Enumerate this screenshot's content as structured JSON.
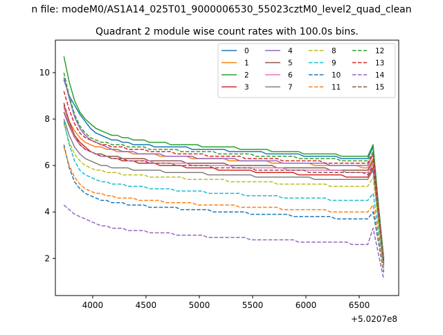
{
  "suptitle": "n file: modeM0/AS1A14_025T01_9000006530_55023cztM0_level2_quad_clean",
  "chart_data": {
    "type": "line",
    "title": "Quadrant 2 module wise count rates with 100.0s bins.",
    "xlabel": "",
    "ylabel": "",
    "x_offset_label": "+5.0207e8",
    "xlim": [
      3650,
      6870
    ],
    "ylim": [
      0.4,
      11.4
    ],
    "xticks": [
      4000,
      4500,
      5000,
      5500,
      6000,
      6500
    ],
    "yticks": [
      2,
      4,
      6,
      8,
      10
    ],
    "grid": false,
    "legend": {
      "placement": "top-right",
      "columns": 4
    },
    "x": [
      3730,
      3780,
      3830,
      3880,
      3930,
      3980,
      4030,
      4080,
      4130,
      4180,
      4230,
      4280,
      4330,
      4380,
      4430,
      4480,
      4530,
      4580,
      4630,
      4680,
      4730,
      4780,
      4830,
      4880,
      4930,
      4980,
      5030,
      5080,
      5130,
      5180,
      5230,
      5280,
      5330,
      5380,
      5430,
      5480,
      5530,
      5580,
      5630,
      5680,
      5730,
      5780,
      5830,
      5880,
      5930,
      5980,
      6030,
      6080,
      6130,
      6180,
      6230,
      6280,
      6330,
      6380,
      6430,
      6480,
      6530,
      6580,
      6630,
      6680,
      6730
    ],
    "series": [
      {
        "name": "0",
        "color": "#1f77b4",
        "dash": "solid",
        "values": [
          9.7,
          9.0,
          8.6,
          8.2,
          7.9,
          7.6,
          7.4,
          7.3,
          7.2,
          7.1,
          7.1,
          7.0,
          7.0,
          6.9,
          6.9,
          6.9,
          6.9,
          6.8,
          6.8,
          6.8,
          6.8,
          6.8,
          6.8,
          6.8,
          6.7,
          6.7,
          6.7,
          6.7,
          6.7,
          6.7,
          6.7,
          6.6,
          6.6,
          6.6,
          6.6,
          6.6,
          6.6,
          6.6,
          6.5,
          6.5,
          6.5,
          6.5,
          6.5,
          6.5,
          6.5,
          6.4,
          6.4,
          6.4,
          6.4,
          6.4,
          6.4,
          6.4,
          6.3,
          6.3,
          6.3,
          6.3,
          6.3,
          6.3,
          6.8,
          4.3,
          1.9
        ]
      },
      {
        "name": "1",
        "color": "#ff7f0e",
        "dash": "solid",
        "values": [
          8.5,
          7.9,
          7.5,
          7.2,
          7.0,
          6.9,
          6.8,
          6.8,
          6.7,
          6.7,
          6.6,
          6.6,
          6.6,
          6.5,
          6.5,
          6.5,
          6.5,
          6.5,
          6.4,
          6.4,
          6.4,
          6.4,
          6.4,
          6.4,
          6.3,
          6.3,
          6.3,
          6.3,
          6.3,
          6.3,
          6.3,
          6.2,
          6.2,
          6.2,
          6.2,
          6.2,
          6.2,
          6.2,
          6.2,
          6.1,
          6.1,
          6.1,
          6.1,
          6.1,
          6.1,
          6.1,
          6.1,
          6.0,
          6.0,
          6.0,
          6.0,
          6.0,
          6.0,
          6.0,
          6.0,
          6.0,
          5.9,
          5.9,
          6.3,
          4.0,
          1.8
        ]
      },
      {
        "name": "2",
        "color": "#2ca02c",
        "dash": "solid",
        "values": [
          10.7,
          9.6,
          8.8,
          8.3,
          8.0,
          7.8,
          7.6,
          7.5,
          7.4,
          7.3,
          7.3,
          7.2,
          7.2,
          7.1,
          7.1,
          7.1,
          7.0,
          7.0,
          7.0,
          7.0,
          6.9,
          6.9,
          6.9,
          6.9,
          6.9,
          6.9,
          6.8,
          6.8,
          6.8,
          6.8,
          6.8,
          6.8,
          6.8,
          6.7,
          6.7,
          6.7,
          6.7,
          6.7,
          6.7,
          6.6,
          6.6,
          6.6,
          6.6,
          6.6,
          6.6,
          6.5,
          6.5,
          6.5,
          6.5,
          6.5,
          6.5,
          6.5,
          6.4,
          6.4,
          6.4,
          6.4,
          6.4,
          6.4,
          6.9,
          4.3,
          2.0
        ]
      },
      {
        "name": "3",
        "color": "#d62728",
        "dash": "solid",
        "values": [
          8.6,
          7.9,
          7.3,
          7.0,
          6.8,
          6.6,
          6.5,
          6.4,
          6.4,
          6.3,
          6.3,
          6.2,
          6.2,
          6.2,
          6.1,
          6.1,
          6.1,
          6.1,
          6.0,
          6.0,
          6.0,
          6.0,
          6.0,
          5.9,
          5.9,
          5.9,
          5.9,
          5.9,
          5.9,
          5.8,
          5.8,
          5.8,
          5.8,
          5.8,
          5.8,
          5.8,
          5.7,
          5.7,
          5.7,
          5.7,
          5.7,
          5.7,
          5.7,
          5.7,
          5.6,
          5.6,
          5.6,
          5.6,
          5.6,
          5.6,
          5.6,
          5.6,
          5.6,
          5.5,
          5.5,
          5.5,
          5.5,
          5.5,
          5.9,
          3.8,
          1.8
        ]
      },
      {
        "name": "4",
        "color": "#9467bd",
        "dash": "solid",
        "values": [
          9.8,
          8.9,
          8.1,
          7.6,
          7.3,
          7.1,
          7.0,
          6.9,
          6.8,
          6.7,
          6.7,
          6.6,
          6.6,
          6.6,
          6.5,
          6.5,
          6.5,
          6.5,
          6.5,
          6.4,
          6.4,
          6.4,
          6.4,
          6.4,
          6.4,
          6.3,
          6.3,
          6.3,
          6.3,
          6.3,
          6.3,
          6.3,
          6.3,
          6.2,
          6.2,
          6.2,
          6.2,
          6.2,
          6.2,
          6.2,
          6.2,
          6.1,
          6.1,
          6.1,
          6.1,
          6.1,
          6.1,
          6.1,
          6.1,
          6.1,
          6.0,
          6.0,
          6.0,
          6.0,
          6.0,
          6.0,
          6.0,
          6.0,
          6.5,
          4.1,
          1.9
        ]
      },
      {
        "name": "5",
        "color": "#8c564b",
        "dash": "solid",
        "values": [
          8.3,
          7.7,
          7.2,
          6.9,
          6.7,
          6.6,
          6.5,
          6.5,
          6.4,
          6.4,
          6.4,
          6.3,
          6.3,
          6.3,
          6.3,
          6.3,
          6.2,
          6.2,
          6.2,
          6.2,
          6.2,
          6.2,
          6.2,
          6.1,
          6.1,
          6.1,
          6.1,
          6.1,
          6.1,
          6.1,
          6.1,
          6.0,
          6.0,
          6.0,
          6.0,
          6.0,
          6.0,
          6.0,
          6.0,
          6.0,
          5.9,
          5.9,
          5.9,
          5.9,
          5.9,
          5.9,
          5.9,
          5.9,
          5.9,
          5.9,
          5.8,
          5.8,
          5.8,
          5.8,
          5.8,
          5.8,
          5.8,
          5.8,
          6.2,
          4.0,
          1.8
        ]
      },
      {
        "name": "6",
        "color": "#e377c2",
        "dash": "solid",
        "values": [
          8.5,
          7.8,
          7.2,
          6.9,
          6.7,
          6.6,
          6.5,
          6.4,
          6.4,
          6.3,
          6.3,
          6.3,
          6.2,
          6.2,
          6.2,
          6.2,
          6.2,
          6.1,
          6.1,
          6.1,
          6.1,
          6.1,
          6.1,
          6.1,
          6.0,
          6.0,
          6.0,
          6.0,
          6.0,
          6.0,
          6.0,
          6.0,
          5.9,
          5.9,
          5.9,
          5.9,
          5.9,
          5.9,
          5.9,
          5.9,
          5.9,
          5.9,
          5.8,
          5.8,
          5.8,
          5.8,
          5.8,
          5.8,
          5.8,
          5.8,
          5.8,
          5.8,
          5.8,
          5.7,
          5.7,
          5.7,
          5.7,
          5.7,
          6.1,
          3.9,
          1.8
        ]
      },
      {
        "name": "7",
        "color": "#7f7f7f",
        "dash": "solid",
        "values": [
          8.0,
          7.3,
          6.8,
          6.5,
          6.3,
          6.2,
          6.1,
          6.0,
          6.0,
          5.9,
          5.9,
          5.9,
          5.9,
          5.8,
          5.8,
          5.8,
          5.8,
          5.8,
          5.8,
          5.7,
          5.7,
          5.7,
          5.7,
          5.7,
          5.7,
          5.7,
          5.7,
          5.6,
          5.6,
          5.6,
          5.6,
          5.6,
          5.6,
          5.6,
          5.6,
          5.6,
          5.5,
          5.5,
          5.5,
          5.5,
          5.5,
          5.5,
          5.5,
          5.5,
          5.5,
          5.5,
          5.5,
          5.4,
          5.4,
          5.4,
          5.4,
          5.4,
          5.4,
          5.4,
          5.4,
          5.4,
          5.4,
          5.4,
          5.8,
          3.7,
          1.7
        ]
      },
      {
        "name": "8",
        "color": "#bcbd22",
        "dash": "dashed",
        "values": [
          7.8,
          7.0,
          6.5,
          6.2,
          6.0,
          5.9,
          5.8,
          5.8,
          5.7,
          5.7,
          5.7,
          5.6,
          5.6,
          5.6,
          5.6,
          5.6,
          5.5,
          5.5,
          5.5,
          5.5,
          5.5,
          5.5,
          5.5,
          5.4,
          5.4,
          5.4,
          5.4,
          5.4,
          5.4,
          5.4,
          5.4,
          5.3,
          5.3,
          5.3,
          5.3,
          5.3,
          5.3,
          5.3,
          5.3,
          5.3,
          5.2,
          5.2,
          5.2,
          5.2,
          5.2,
          5.2,
          5.2,
          5.2,
          5.2,
          5.2,
          5.1,
          5.1,
          5.1,
          5.1,
          5.1,
          5.1,
          5.1,
          5.1,
          5.5,
          3.5,
          1.6
        ]
      },
      {
        "name": "9",
        "color": "#17becf",
        "dash": "dashed",
        "values": [
          7.9,
          6.9,
          6.2,
          5.8,
          5.6,
          5.5,
          5.4,
          5.3,
          5.3,
          5.2,
          5.2,
          5.2,
          5.1,
          5.1,
          5.1,
          5.1,
          5.0,
          5.0,
          5.0,
          5.0,
          5.0,
          4.9,
          4.9,
          4.9,
          4.9,
          4.9,
          4.9,
          4.8,
          4.8,
          4.8,
          4.8,
          4.8,
          4.8,
          4.8,
          4.7,
          4.7,
          4.7,
          4.7,
          4.7,
          4.7,
          4.7,
          4.6,
          4.6,
          4.6,
          4.6,
          4.6,
          4.6,
          4.6,
          4.6,
          4.6,
          4.5,
          4.5,
          4.5,
          4.5,
          4.5,
          4.5,
          4.5,
          4.5,
          4.8,
          3.2,
          1.5
        ]
      },
      {
        "name": "10",
        "color": "#1f77b4",
        "dash": "dashed",
        "values": [
          6.9,
          5.9,
          5.3,
          5.0,
          4.8,
          4.7,
          4.6,
          4.5,
          4.5,
          4.4,
          4.4,
          4.4,
          4.3,
          4.3,
          4.3,
          4.3,
          4.2,
          4.2,
          4.2,
          4.2,
          4.2,
          4.2,
          4.1,
          4.1,
          4.1,
          4.1,
          4.1,
          4.1,
          4.0,
          4.0,
          4.0,
          4.0,
          4.0,
          4.0,
          4.0,
          3.9,
          3.9,
          3.9,
          3.9,
          3.9,
          3.9,
          3.9,
          3.9,
          3.8,
          3.8,
          3.8,
          3.8,
          3.8,
          3.8,
          3.8,
          3.8,
          3.7,
          3.7,
          3.7,
          3.7,
          3.7,
          3.7,
          3.7,
          4.0,
          2.7,
          1.4
        ]
      },
      {
        "name": "11",
        "color": "#ff7f0e",
        "dash": "dashed",
        "values": [
          6.8,
          6.0,
          5.5,
          5.2,
          5.0,
          4.9,
          4.8,
          4.8,
          4.7,
          4.7,
          4.6,
          4.6,
          4.6,
          4.6,
          4.5,
          4.5,
          4.5,
          4.5,
          4.5,
          4.4,
          4.4,
          4.4,
          4.4,
          4.4,
          4.4,
          4.3,
          4.3,
          4.3,
          4.3,
          4.3,
          4.3,
          4.3,
          4.3,
          4.2,
          4.2,
          4.2,
          4.2,
          4.2,
          4.2,
          4.2,
          4.2,
          4.1,
          4.1,
          4.1,
          4.1,
          4.1,
          4.1,
          4.1,
          4.1,
          4.1,
          4.0,
          4.0,
          4.0,
          4.0,
          4.0,
          4.0,
          4.0,
          4.0,
          4.3,
          2.9,
          1.5
        ]
      },
      {
        "name": "12",
        "color": "#2ca02c",
        "dash": "dashed",
        "values": [
          10.0,
          9.0,
          8.2,
          7.7,
          7.4,
          7.2,
          7.1,
          7.0,
          7.0,
          6.9,
          6.9,
          6.9,
          6.8,
          6.8,
          6.8,
          6.8,
          6.7,
          6.7,
          6.7,
          6.7,
          6.7,
          6.7,
          6.6,
          6.6,
          6.6,
          6.6,
          6.6,
          6.6,
          6.6,
          6.5,
          6.5,
          6.5,
          6.5,
          6.5,
          6.5,
          6.5,
          6.4,
          6.4,
          6.4,
          6.4,
          6.4,
          6.4,
          6.4,
          6.4,
          6.3,
          6.3,
          6.3,
          6.3,
          6.3,
          6.3,
          6.3,
          6.3,
          6.2,
          6.2,
          6.2,
          6.2,
          6.2,
          6.2,
          6.6,
          4.2,
          1.9
        ]
      },
      {
        "name": "13",
        "color": "#d62728",
        "dash": "dashed",
        "values": [
          9.2,
          8.4,
          7.8,
          7.4,
          7.2,
          7.1,
          7.0,
          6.9,
          6.9,
          6.8,
          6.8,
          6.8,
          6.7,
          6.7,
          6.7,
          6.7,
          6.6,
          6.6,
          6.6,
          6.6,
          6.6,
          6.5,
          6.5,
          6.5,
          6.5,
          6.5,
          6.5,
          6.4,
          6.4,
          6.4,
          6.4,
          6.4,
          6.4,
          6.4,
          6.3,
          6.3,
          6.3,
          6.3,
          6.3,
          6.3,
          6.3,
          6.2,
          6.2,
          6.2,
          6.2,
          6.2,
          6.2,
          6.2,
          6.2,
          6.1,
          6.1,
          6.1,
          6.1,
          6.1,
          6.1,
          6.1,
          6.1,
          6.1,
          6.5,
          4.1,
          1.8
        ]
      },
      {
        "name": "14",
        "color": "#9467bd",
        "dash": "dashed",
        "values": [
          4.3,
          4.1,
          3.9,
          3.8,
          3.7,
          3.6,
          3.5,
          3.4,
          3.4,
          3.3,
          3.3,
          3.3,
          3.2,
          3.2,
          3.2,
          3.2,
          3.1,
          3.1,
          3.1,
          3.1,
          3.1,
          3.0,
          3.0,
          3.0,
          3.0,
          3.0,
          3.0,
          2.9,
          2.9,
          2.9,
          2.9,
          2.9,
          2.9,
          2.9,
          2.9,
          2.8,
          2.8,
          2.8,
          2.8,
          2.8,
          2.8,
          2.8,
          2.8,
          2.8,
          2.7,
          2.7,
          2.7,
          2.7,
          2.7,
          2.7,
          2.7,
          2.7,
          2.7,
          2.7,
          2.6,
          2.6,
          2.6,
          2.6,
          3.3,
          2.2,
          1.1
        ]
      },
      {
        "name": "15",
        "color": "#8c564b",
        "dash": "dashed",
        "values": [
          8.7,
          7.9,
          7.3,
          6.9,
          6.7,
          6.6,
          6.5,
          6.4,
          6.4,
          6.3,
          6.3,
          6.3,
          6.2,
          6.2,
          6.2,
          6.2,
          6.1,
          6.1,
          6.1,
          6.1,
          6.1,
          6.0,
          6.0,
          6.0,
          6.0,
          6.0,
          6.0,
          6.0,
          5.9,
          5.9,
          5.9,
          5.9,
          5.9,
          5.9,
          5.9,
          5.9,
          5.8,
          5.8,
          5.8,
          5.8,
          5.8,
          5.8,
          5.8,
          5.8,
          5.8,
          5.8,
          5.7,
          5.7,
          5.7,
          5.7,
          5.7,
          5.7,
          5.7,
          5.7,
          5.7,
          5.7,
          5.7,
          5.6,
          6.0,
          3.9,
          1.8
        ]
      }
    ]
  }
}
